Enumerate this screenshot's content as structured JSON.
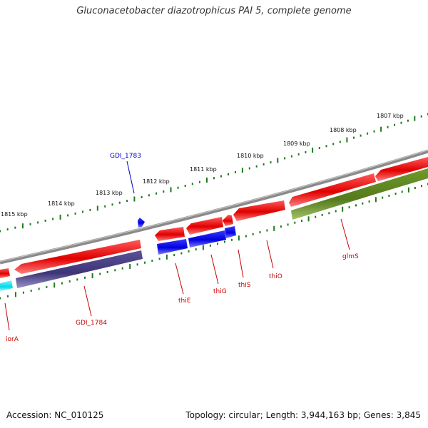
{
  "title": "Gluconacetobacter diazotrophicus PAI 5, complete genome",
  "footer": {
    "accession": "Accession: NC_010125",
    "summary": "Topology: circular; Length: 3,944,163 bp; Genes: 3,845"
  },
  "ruler": {
    "labels": [
      "1807 kbp",
      "1808 kbp",
      "1809 kbp",
      "1810 kbp",
      "1811 kbp",
      "1812 kbp",
      "1813 kbp",
      "1814 kbp",
      "1815 kbp"
    ]
  },
  "genes": [
    {
      "name": "GDI_1783",
      "color": "#0000cc"
    },
    {
      "name": "GDI_1784",
      "color": "#cc0000"
    },
    {
      "name": "iorA",
      "color": "#cc0000"
    },
    {
      "name": "thiE",
      "color": "#cc0000"
    },
    {
      "name": "thiG",
      "color": "#cc0000"
    },
    {
      "name": "thiS",
      "color": "#cc0000"
    },
    {
      "name": "thiO",
      "color": "#cc0000"
    },
    {
      "name": "glmS",
      "color": "#cc0000"
    }
  ],
  "colors": {
    "backbone": "#8a8a8a",
    "ruler": "#1e7a1e",
    "red": "#e00000",
    "blue": "#0000dd",
    "navy": "#3d3577",
    "olive": "#557a1c",
    "cyan": "#00d8e8"
  }
}
